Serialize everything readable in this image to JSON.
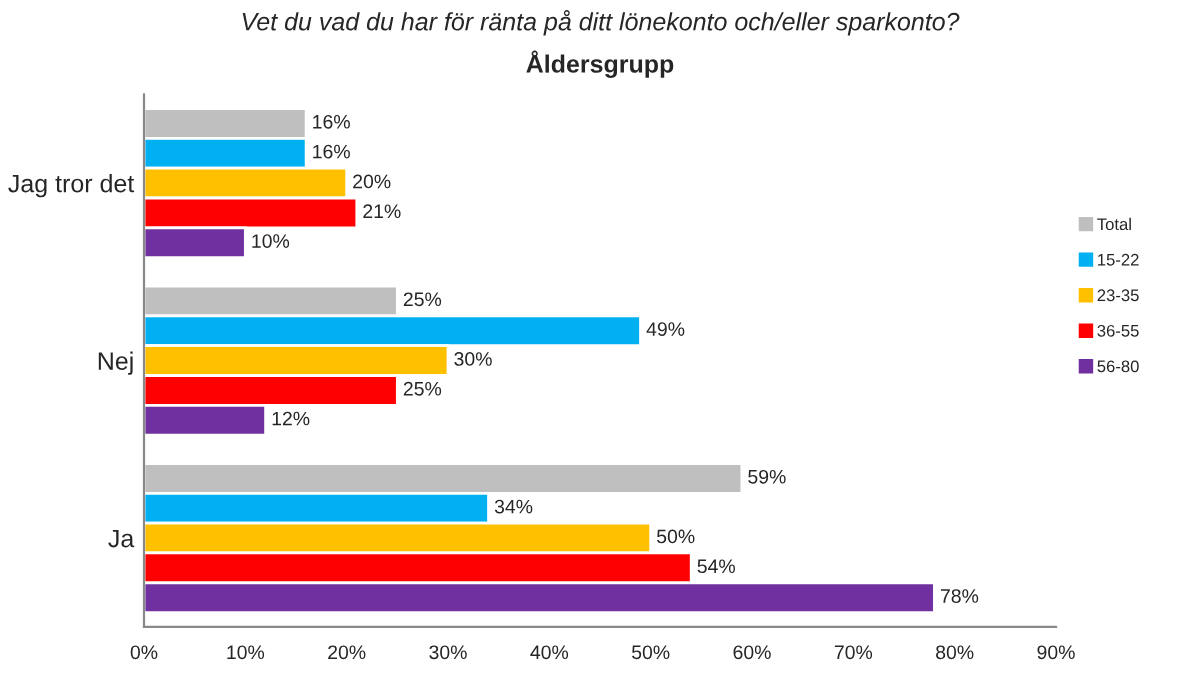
{
  "chart_data": {
    "type": "bar",
    "orientation": "horizontal",
    "title": "Vet du vad du har för ränta på ditt lönekonto och/eller sparkonto?",
    "subtitle": "Åldersgrupp",
    "categories": [
      "Jag tror det",
      "Nej",
      "Ja"
    ],
    "series": [
      {
        "name": "Total",
        "color": "#bfbfbf",
        "values": [
          16,
          25,
          59
        ],
        "value_labels": [
          "16%",
          "25%",
          "59%"
        ]
      },
      {
        "name": "15-22",
        "color": "#00b0f0",
        "values": [
          16,
          49,
          34
        ],
        "value_labels": [
          "16%",
          "49%",
          "34%"
        ]
      },
      {
        "name": "23-35",
        "color": "#ffc000",
        "values": [
          20,
          30,
          50
        ],
        "value_labels": [
          "20%",
          "30%",
          "50%"
        ]
      },
      {
        "name": "36-55",
        "color": "#ff0000",
        "values": [
          21,
          25,
          54
        ],
        "value_labels": [
          "21%",
          "25%",
          "54%"
        ]
      },
      {
        "name": "56-80",
        "color": "#7030a0",
        "values": [
          10,
          12,
          78
        ],
        "value_labels": [
          "10%",
          "12%",
          "78%"
        ]
      }
    ],
    "xlim": [
      0,
      90
    ],
    "xticks": [
      {
        "value": 0,
        "label": "0%"
      },
      {
        "value": 10,
        "label": "10%"
      },
      {
        "value": 20,
        "label": "20%"
      },
      {
        "value": 30,
        "label": "30%"
      },
      {
        "value": 40,
        "label": "40%"
      },
      {
        "value": 50,
        "label": "50%"
      },
      {
        "value": 60,
        "label": "60%"
      },
      {
        "value": 70,
        "label": "70%"
      },
      {
        "value": 80,
        "label": "80%"
      },
      {
        "value": 90,
        "label": "90%"
      }
    ],
    "grid": false,
    "legend": "right"
  }
}
